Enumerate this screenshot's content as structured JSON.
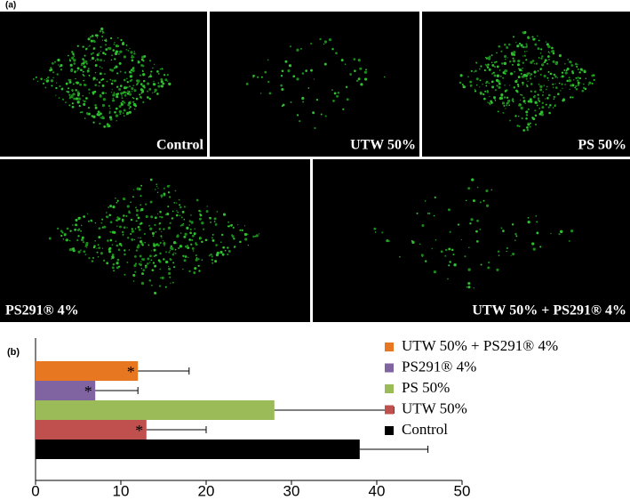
{
  "figure": {
    "panel_a_label": "(a)",
    "images": [
      {
        "label": "Control"
      },
      {
        "label": "UTW 50%"
      },
      {
        "label": "PS 50%"
      },
      {
        "label": "PS291® 4%"
      },
      {
        "label": "UTW 50% + PS291® 4%"
      }
    ]
  },
  "chart_data": {
    "type": "hbar",
    "panel_label": "(b)",
    "series": [
      {
        "name": "UTW 50% + PS291® 4%",
        "color": "#e87722",
        "values": [
          12
        ],
        "errors": [
          6
        ],
        "annotation": "*"
      },
      {
        "name": "PS291® 4%",
        "color": "#8064a2",
        "values": [
          7
        ],
        "errors": [
          5
        ],
        "annotation": "*"
      },
      {
        "name": "PS 50%",
        "color": "#9bbb59",
        "values": [
          28
        ],
        "errors": [
          14
        ]
      },
      {
        "name": "UTW 50%",
        "color": "#c0504d",
        "values": [
          13
        ],
        "errors": [
          7
        ],
        "annotation": "*"
      },
      {
        "name": "Control",
        "color": "#000000",
        "values": [
          38
        ],
        "errors": [
          8
        ]
      }
    ],
    "xlim": [
      0,
      50
    ],
    "xticks": [
      0,
      10,
      20,
      30,
      40,
      50
    ]
  }
}
